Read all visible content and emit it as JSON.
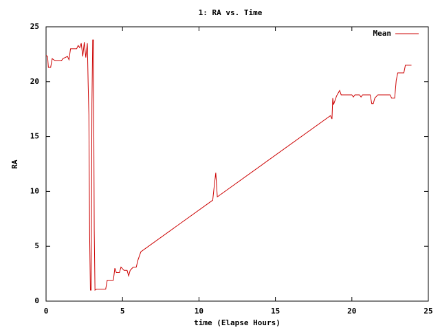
{
  "chart_data": {
    "type": "line",
    "title": "1: RA vs. Time",
    "x_label": "time (Elapse Hours)",
    "y_label": "RA",
    "x": [
      0,
      0.1,
      0.15,
      0.3,
      0.4,
      0.6,
      1.0,
      1.1,
      1.4,
      1.5,
      1.6,
      2.0,
      2.1,
      2.2,
      2.3,
      2.4,
      2.5,
      2.6,
      2.7,
      2.75,
      2.8,
      2.85,
      2.9,
      2.95,
      3.0,
      3.05,
      3.1,
      3.15,
      3.2,
      3.3,
      3.5,
      3.9,
      4.0,
      4.4,
      4.5,
      4.6,
      4.8,
      4.9,
      5.1,
      5.3,
      5.4,
      5.5,
      5.7,
      5.9,
      6.0,
      6.2,
      10.9,
      11.0,
      11.1,
      11.2,
      18.6,
      18.7,
      18.75,
      18.8,
      19.0,
      19.2,
      19.3,
      20.0,
      20.1,
      20.2,
      20.5,
      20.6,
      20.7,
      21.2,
      21.3,
      21.4,
      21.5,
      21.7,
      22.5,
      22.6,
      22.8,
      22.9,
      23.0,
      23.4,
      23.5,
      23.9
    ],
    "series": [
      {
        "name": "Mean",
        "color": "#cc0000",
        "values": [
          22.4,
          22.3,
          21.3,
          21.3,
          22.1,
          21.9,
          21.9,
          22.1,
          22.3,
          22.0,
          23.0,
          23.0,
          23.3,
          23.1,
          23.5,
          22.3,
          23.6,
          22.2,
          23.5,
          20,
          17,
          6,
          1,
          1,
          18,
          23.8,
          23.8,
          6.5,
          1.0,
          1.1,
          1.1,
          1.1,
          1.9,
          1.9,
          3.0,
          2.6,
          2.6,
          3.1,
          2.8,
          2.8,
          2.3,
          2.8,
          3.1,
          3.1,
          3.7,
          4.5,
          9.2,
          10.5,
          11.7,
          9.5,
          16.9,
          16.6,
          18.5,
          17.9,
          18.7,
          19.2,
          18.8,
          18.8,
          18.6,
          18.8,
          18.8,
          18.6,
          18.8,
          18.8,
          18.0,
          18.0,
          18.5,
          18.8,
          18.8,
          18.5,
          18.5,
          20.1,
          20.8,
          20.8,
          21.5,
          21.5
        ]
      }
    ],
    "xlim": [
      0,
      25
    ],
    "ylim": [
      0,
      25
    ],
    "xticks": [
      0,
      5,
      10,
      15,
      20,
      25
    ],
    "yticks": [
      0,
      5,
      10,
      15,
      20,
      25
    ],
    "legend": "top-right"
  }
}
